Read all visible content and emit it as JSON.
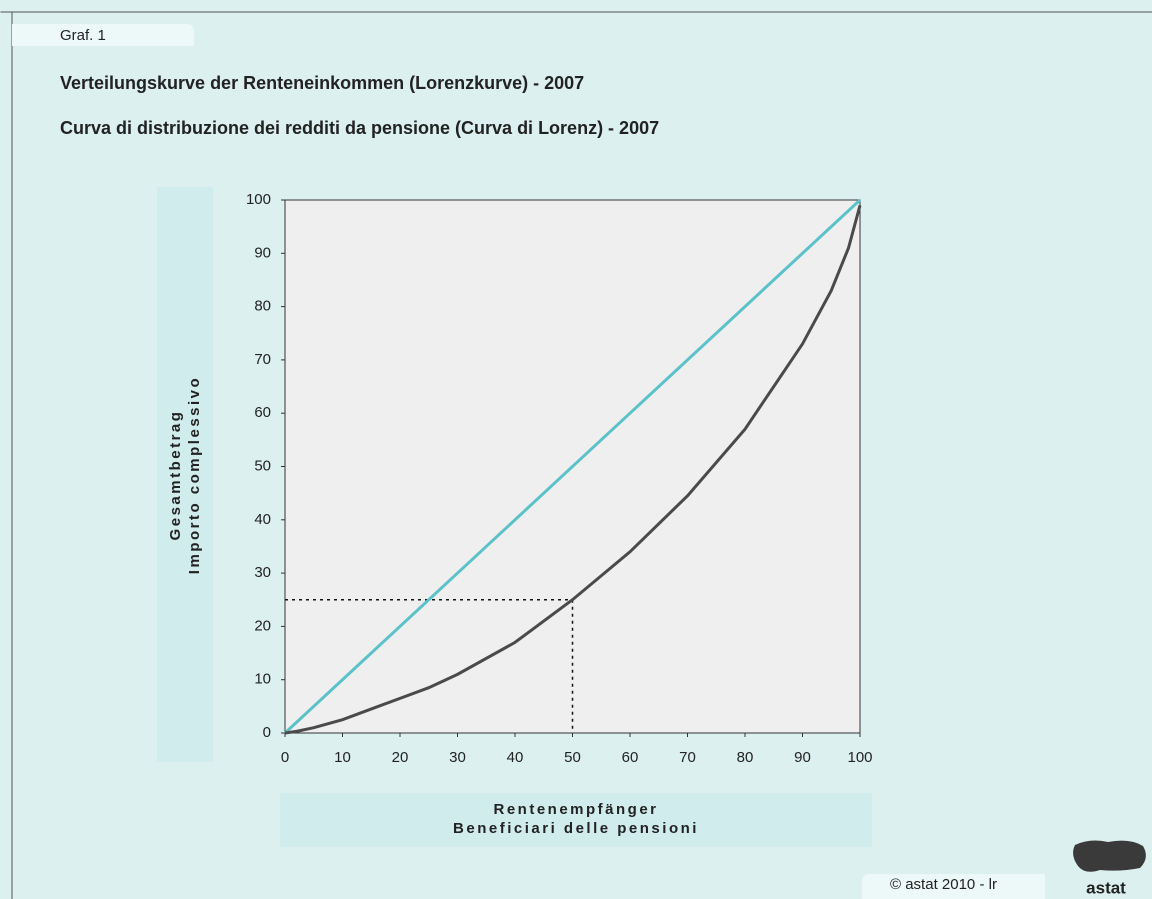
{
  "chart_data": {
    "type": "line",
    "label": "Graf. 1",
    "title": "Verteilungskurve der Renteneinkommen (Lorenzkurve) - 2007",
    "subtitle": "Curva di distribuzione dei redditi da pensione (Curva di Lorenz) - 2007",
    "ylabel": [
      "Gesamtbetrag",
      "Importo complessivo"
    ],
    "xlabel": [
      "Rentenempfänger",
      "Beneficiari delle pensioni"
    ],
    "xlim": [
      0,
      100
    ],
    "ylim": [
      0,
      100
    ],
    "xticks": [
      0,
      10,
      20,
      30,
      40,
      50,
      60,
      70,
      80,
      90,
      100
    ],
    "yticks": [
      0,
      10,
      20,
      30,
      40,
      50,
      60,
      70,
      80,
      90,
      100
    ],
    "series": [
      {
        "color": "#5cc2c9",
        "x": [
          0,
          100
        ],
        "values": [
          0,
          100
        ]
      },
      {
        "color": "#4a4a4a",
        "x": [
          0,
          2,
          5,
          10,
          20,
          25,
          30,
          40,
          50,
          60,
          70,
          80,
          90,
          95,
          98,
          100
        ],
        "values": [
          0,
          0.3,
          1,
          2.5,
          6.5,
          8.5,
          11,
          17,
          25,
          34,
          44.5,
          57,
          73,
          83,
          91,
          99
        ]
      }
    ],
    "reference": {
      "x": 50,
      "y": 25
    },
    "copyright": "© astat 2010 - lr",
    "logo": "astat"
  }
}
